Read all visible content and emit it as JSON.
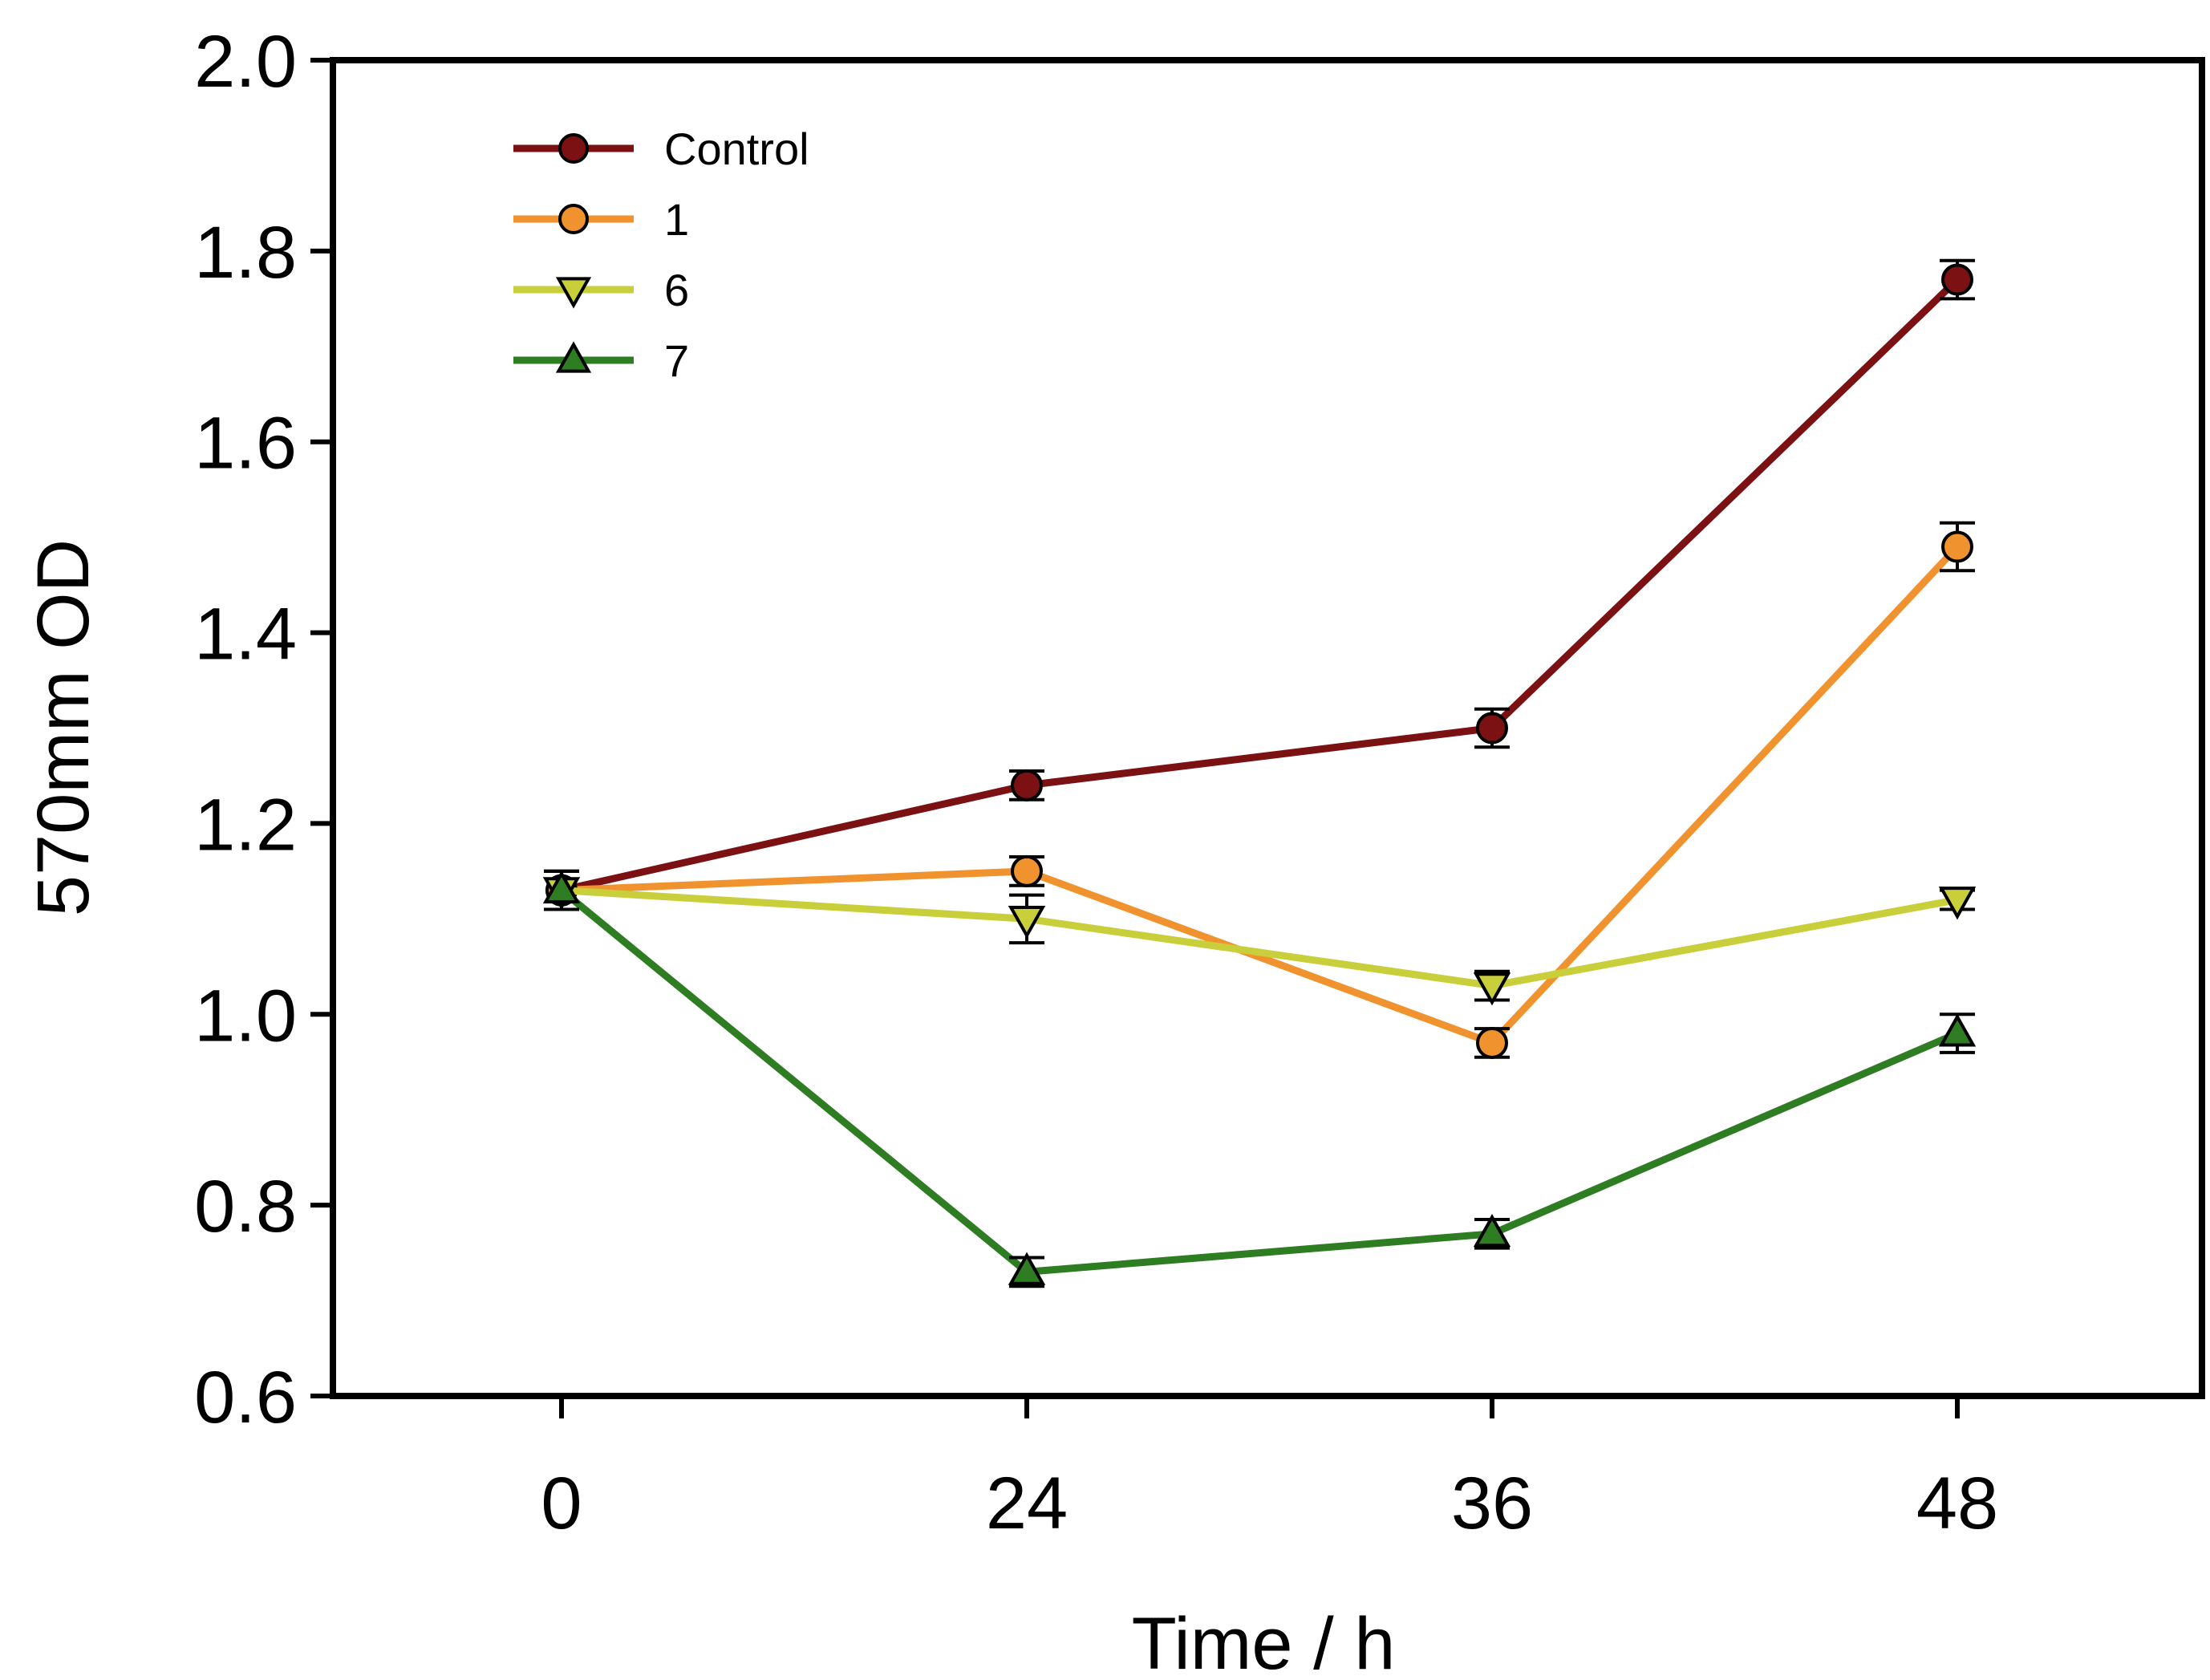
{
  "chart_data": {
    "type": "line",
    "title": "",
    "xlabel": "Time / h",
    "ylabel": "570mm OD",
    "x": [
      0,
      24,
      36,
      48
    ],
    "x_tick_labels": [
      "0",
      "24",
      "36",
      "48"
    ],
    "ylim": [
      0.6,
      2.0
    ],
    "y_ticks": [
      0.6,
      0.8,
      1.0,
      1.2,
      1.4,
      1.6,
      1.8,
      2.0
    ],
    "y_tick_labels": [
      "0.6",
      "0.8",
      "1.0",
      "1.2",
      "1.4",
      "1.6",
      "1.8",
      "2.0"
    ],
    "grid": false,
    "legend_position": "top-left",
    "series": [
      {
        "name": "Control",
        "color": "#7b1113",
        "marker": "circle",
        "values": [
          1.13,
          1.24,
          1.3,
          1.77
        ],
        "errors": [
          0.02,
          0.015,
          0.02,
          0.02
        ]
      },
      {
        "name": "1",
        "color": "#f0932f",
        "marker": "circle",
        "values": [
          1.13,
          1.15,
          0.97,
          1.49
        ],
        "errors": [
          0.02,
          0.015,
          0.015,
          0.025
        ]
      },
      {
        "name": "6",
        "color": "#c9cf3a",
        "marker": "triangle-down",
        "values": [
          1.13,
          1.1,
          1.03,
          1.12
        ],
        "errors": [
          0.02,
          0.025,
          0.015,
          0.01
        ]
      },
      {
        "name": "7",
        "color": "#2e7d22",
        "marker": "triangle-up",
        "values": [
          1.13,
          0.73,
          0.77,
          0.98
        ],
        "errors": [
          0.02,
          0.015,
          0.015,
          0.02
        ]
      }
    ]
  }
}
